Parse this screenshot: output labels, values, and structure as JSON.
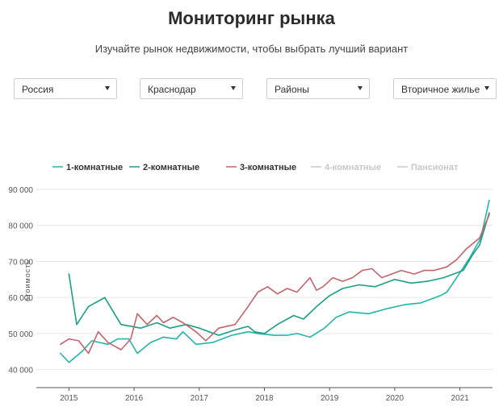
{
  "header": {
    "title": "Мониторинг рынка",
    "subtitle": "Изучайте рынок недвижимости, чтобы выбрать лучший вариант"
  },
  "filters": [
    {
      "name": "country",
      "value": "Россия"
    },
    {
      "name": "city",
      "value": "Краснодар"
    },
    {
      "name": "district",
      "value": "Районы"
    },
    {
      "name": "market",
      "value": "Вторичное жилье"
    }
  ],
  "colors": {
    "series1": "#23b5a8",
    "series2": "#1b9e86",
    "series3": "#c5636a",
    "disabled": "#c8c8c8",
    "grid": "#e6e6e6",
    "axis": "#555555"
  },
  "chart_data": {
    "type": "line",
    "ylabel": "стоимость",
    "ylim": [
      35000,
      90000
    ],
    "yticks": [
      40000,
      50000,
      60000,
      70000,
      80000,
      90000
    ],
    "ytick_labels": [
      "40 000",
      "50 000",
      "60 000",
      "70 000",
      "80 000",
      "90 000"
    ],
    "xlim": [
      2014.5,
      2021.5
    ],
    "xticks": [
      2015,
      2016,
      2017,
      2018,
      2019,
      2020,
      2021
    ],
    "xtick_labels": [
      "2015",
      "2016",
      "2017",
      "2018",
      "2019",
      "2020",
      "2021"
    ],
    "grid": true,
    "legend_position": "top",
    "series": [
      {
        "name": "1-комнатные",
        "active": true,
        "x": [
          2014.87,
          2015.0,
          2015.2,
          2015.35,
          2015.6,
          2015.75,
          2015.92,
          2016.05,
          2016.25,
          2016.45,
          2016.65,
          2016.75,
          2016.95,
          2017.2,
          2017.5,
          2017.75,
          2017.9,
          2018.15,
          2018.35,
          2018.5,
          2018.7,
          2018.92,
          2019.1,
          2019.3,
          2019.6,
          2019.9,
          2020.15,
          2020.4,
          2020.7,
          2020.8,
          2020.95,
          2021.15,
          2021.32,
          2021.45
        ],
        "y": [
          44500,
          42000,
          45000,
          48000,
          47000,
          48500,
          48500,
          44500,
          47500,
          49000,
          48500,
          50500,
          47000,
          47500,
          49500,
          50500,
          50000,
          49500,
          49500,
          50000,
          49000,
          51500,
          54500,
          56000,
          55500,
          57000,
          58000,
          58500,
          60500,
          61500,
          65500,
          71000,
          76500,
          87000
        ]
      },
      {
        "name": "2-комнатные",
        "active": true,
        "x": [
          2015.0,
          2015.12,
          2015.3,
          2015.55,
          2015.8,
          2016.1,
          2016.35,
          2016.55,
          2016.8,
          2017.0,
          2017.3,
          2017.55,
          2017.75,
          2017.85,
          2018.0,
          2018.2,
          2018.45,
          2018.6,
          2018.8,
          2019.0,
          2019.2,
          2019.45,
          2019.7,
          2020.0,
          2020.25,
          2020.5,
          2020.75,
          2020.9,
          2021.05,
          2021.2,
          2021.3,
          2021.45
        ],
        "y": [
          66500,
          52500,
          57500,
          60000,
          52500,
          51500,
          53000,
          51500,
          52500,
          51500,
          49500,
          51000,
          52000,
          50500,
          50000,
          52500,
          55000,
          54000,
          57500,
          60500,
          62500,
          63500,
          63000,
          65000,
          64000,
          64500,
          65500,
          66500,
          67500,
          72000,
          74500,
          83500
        ]
      },
      {
        "name": "3-комнатные",
        "active": true,
        "x": [
          2014.87,
          2015.0,
          2015.15,
          2015.3,
          2015.45,
          2015.6,
          2015.8,
          2015.95,
          2016.05,
          2016.2,
          2016.35,
          2016.45,
          2016.6,
          2016.75,
          2016.95,
          2017.1,
          2017.3,
          2017.55,
          2017.75,
          2017.9,
          2018.05,
          2018.2,
          2018.35,
          2018.5,
          2018.6,
          2018.7,
          2018.8,
          2018.9,
          2019.05,
          2019.2,
          2019.35,
          2019.5,
          2019.65,
          2019.8,
          2019.95,
          2020.1,
          2020.3,
          2020.45,
          2020.6,
          2020.8,
          2020.95,
          2021.1,
          2021.3,
          2021.45
        ],
        "y": [
          47000,
          48500,
          48000,
          44500,
          50500,
          47500,
          45500,
          48500,
          55500,
          52500,
          55000,
          53000,
          54500,
          53000,
          50500,
          48000,
          51500,
          52500,
          57500,
          61500,
          63000,
          61000,
          62500,
          61500,
          63500,
          65500,
          62000,
          63000,
          65500,
          64500,
          65500,
          67500,
          68000,
          65500,
          66500,
          67500,
          66500,
          67500,
          67500,
          68500,
          70500,
          73500,
          76500,
          83000
        ]
      },
      {
        "name": "4-комнатные",
        "active": false,
        "x": [],
        "y": []
      },
      {
        "name": "Пансионат",
        "active": false,
        "x": [],
        "y": []
      }
    ]
  }
}
